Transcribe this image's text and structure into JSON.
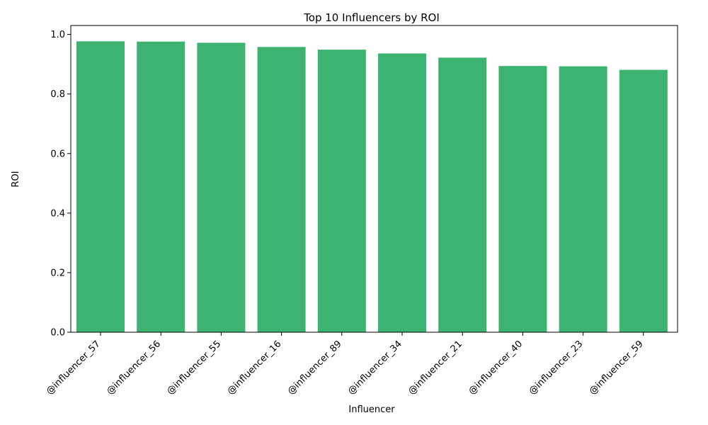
{
  "chart_data": {
    "type": "bar",
    "title": "Top 10 Influencers by ROI",
    "xlabel": "Influencer",
    "ylabel": "ROI",
    "categories": [
      "@influencer_57",
      "@influencer_56",
      "@influencer_55",
      "@influencer_16",
      "@influencer_89",
      "@influencer_34",
      "@influencer_21",
      "@influencer_40",
      "@influencer_23",
      "@influencer_59"
    ],
    "values": [
      0.977,
      0.976,
      0.972,
      0.958,
      0.949,
      0.936,
      0.922,
      0.894,
      0.893,
      0.881
    ],
    "ylim": [
      0,
      1.03
    ],
    "yticks": [
      {
        "value": 0.0,
        "label": "0.0"
      },
      {
        "value": 0.2,
        "label": "0.2"
      },
      {
        "value": 0.4,
        "label": "0.4"
      },
      {
        "value": 0.6,
        "label": "0.6"
      },
      {
        "value": 0.8,
        "label": "0.8"
      },
      {
        "value": 1.0,
        "label": "1.0"
      }
    ],
    "bar_color": "#3cb371",
    "grid": false,
    "legend": "none"
  }
}
